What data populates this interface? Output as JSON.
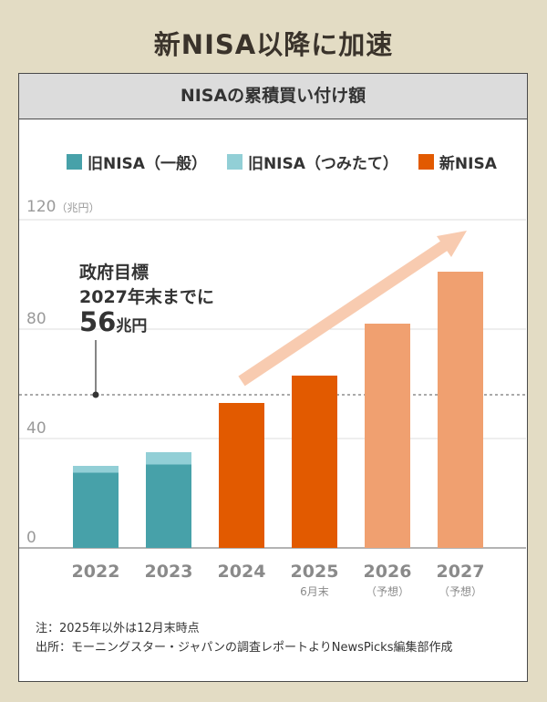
{
  "headline": "新NISA以降に加速",
  "card_title": "NISAの累積買い付け額",
  "legend": [
    {
      "label": "旧NISA（一般）",
      "color": "#47a1a9"
    },
    {
      "label": "旧NISA（つみたて）",
      "color": "#92cfd6"
    },
    {
      "label": "新NISA",
      "color": "#e25a00"
    }
  ],
  "goal": {
    "line1": "政府目標",
    "line2": "2027年末までに",
    "value": "56",
    "unit": "兆円"
  },
  "notes": {
    "line1": "注：2025年以外は12月末時点",
    "line2": "出所：モーニングスター・ジャパンの調査レポートよりNewsPicks編集部作成"
  },
  "chart_data": {
    "type": "bar",
    "title": "NISAの累積買い付け額",
    "ylabel": "兆円",
    "ylim": [
      0,
      120
    ],
    "yticks": [
      0,
      40,
      80,
      120
    ],
    "unit_label": "（兆円）",
    "grid": true,
    "target_line": 56,
    "categories": [
      "2022",
      "2023",
      "2024",
      "2025",
      "2026",
      "2027"
    ],
    "category_sublabels": [
      "",
      "",
      "",
      "6月末",
      "（予想）",
      "（予想）"
    ],
    "series": [
      {
        "name": "旧NISA（一般）",
        "color": "#47a1a9",
        "values": [
          27.5,
          30.5,
          0,
          0,
          0,
          0
        ]
      },
      {
        "name": "旧NISA（つみたて）",
        "color": "#92cfd6",
        "values": [
          2.5,
          4.5,
          0,
          0,
          0,
          0
        ]
      },
      {
        "name": "新NISA",
        "color": "#e25a00",
        "values": [
          0,
          0,
          53,
          63,
          82,
          101
        ]
      }
    ],
    "forecast_color": "#f0a070",
    "forecast_from_index": 4,
    "trend_arrow_color": "#f8cbb0"
  }
}
